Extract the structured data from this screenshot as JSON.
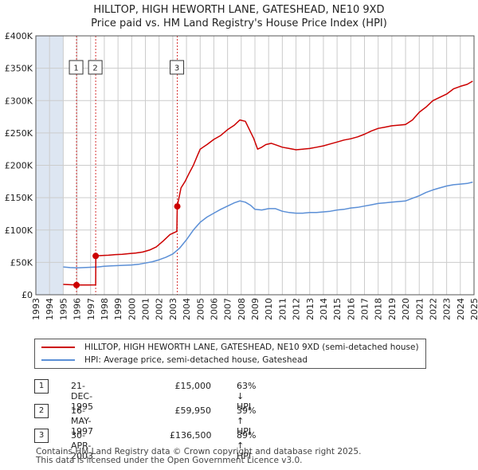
{
  "title_line1": "HILLTOP, HIGH HEWORTH LANE, GATESHEAD, NE10 9XD",
  "title_line2": "Price paid vs. HM Land Registry's House Price Index (HPI)",
  "colors": {
    "property": "#cc0000",
    "hpi": "#5b8fd6",
    "shade": "#dde6f2",
    "grid": "#cccccc"
  },
  "chart_data": {
    "type": "line",
    "xlim": [
      1993,
      2025
    ],
    "ylim": [
      0,
      400000
    ],
    "xticks": [
      1993,
      1994,
      1995,
      1996,
      1997,
      1998,
      1999,
      2000,
      2001,
      2002,
      2003,
      2004,
      2005,
      2006,
      2007,
      2008,
      2009,
      2010,
      2011,
      2012,
      2013,
      2014,
      2015,
      2016,
      2017,
      2018,
      2019,
      2020,
      2021,
      2022,
      2023,
      2024,
      2025
    ],
    "yticks": [
      {
        "value": 0,
        "label": "£0"
      },
      {
        "value": 50000,
        "label": "£50K"
      },
      {
        "value": 100000,
        "label": "£100K"
      },
      {
        "value": 150000,
        "label": "£150K"
      },
      {
        "value": 200000,
        "label": "£200K"
      },
      {
        "value": 250000,
        "label": "£250K"
      },
      {
        "value": 300000,
        "label": "£300K"
      },
      {
        "value": 350000,
        "label": "£350K"
      },
      {
        "value": 400000,
        "label": "£400K"
      }
    ],
    "shaded_ranges": [
      [
        1993,
        1995.0
      ],
      [
        2025.0,
        2025.4
      ]
    ],
    "series": [
      {
        "name": "HILLTOP, HIGH HEWORTH LANE, GATESHEAD, NE10 9XD (semi-detached house)",
        "color": "#cc0000",
        "points": [
          [
            1995.0,
            16000
          ],
          [
            1995.5,
            15500
          ],
          [
            1995.97,
            15000
          ],
          [
            1996.3,
            15000
          ],
          [
            1996.8,
            15100
          ],
          [
            1997.37,
            15200
          ],
          [
            1997.38,
            59950
          ],
          [
            1997.8,
            60500
          ],
          [
            1998.3,
            61000
          ],
          [
            1998.8,
            62000
          ],
          [
            1999.3,
            62500
          ],
          [
            1999.8,
            63500
          ],
          [
            2000.3,
            64500
          ],
          [
            2000.8,
            66000
          ],
          [
            2001.3,
            69000
          ],
          [
            2001.8,
            74000
          ],
          [
            2002.3,
            83000
          ],
          [
            2002.8,
            93000
          ],
          [
            2003.3,
            98000
          ],
          [
            2003.33,
            136500
          ],
          [
            2003.6,
            165000
          ],
          [
            2003.9,
            175000
          ],
          [
            2004.2,
            188000
          ],
          [
            2004.5,
            200000
          ],
          [
            2004.8,
            215000
          ],
          [
            2005.0,
            225000
          ],
          [
            2005.5,
            232000
          ],
          [
            2006.0,
            240000
          ],
          [
            2006.5,
            246000
          ],
          [
            2007.0,
            255000
          ],
          [
            2007.5,
            262000
          ],
          [
            2007.9,
            270000
          ],
          [
            2008.3,
            268000
          ],
          [
            2008.6,
            255000
          ],
          [
            2008.9,
            242000
          ],
          [
            2009.2,
            225000
          ],
          [
            2009.5,
            228000
          ],
          [
            2009.8,
            232000
          ],
          [
            2010.2,
            234000
          ],
          [
            2010.6,
            231000
          ],
          [
            2011.0,
            228000
          ],
          [
            2011.5,
            226000
          ],
          [
            2012.0,
            224000
          ],
          [
            2012.5,
            225000
          ],
          [
            2013.0,
            226000
          ],
          [
            2013.5,
            228000
          ],
          [
            2014.0,
            230000
          ],
          [
            2014.5,
            233000
          ],
          [
            2015.0,
            236000
          ],
          [
            2015.5,
            239000
          ],
          [
            2016.0,
            241000
          ],
          [
            2016.5,
            244000
          ],
          [
            2017.0,
            248000
          ],
          [
            2017.5,
            253000
          ],
          [
            2018.0,
            257000
          ],
          [
            2018.5,
            259000
          ],
          [
            2019.0,
            261000
          ],
          [
            2019.5,
            262000
          ],
          [
            2020.0,
            263000
          ],
          [
            2020.5,
            270000
          ],
          [
            2021.0,
            282000
          ],
          [
            2021.5,
            290000
          ],
          [
            2022.0,
            300000
          ],
          [
            2022.5,
            305000
          ],
          [
            2023.0,
            310000
          ],
          [
            2023.5,
            318000
          ],
          [
            2024.0,
            322000
          ],
          [
            2024.5,
            325000
          ],
          [
            2024.9,
            330000
          ]
        ]
      },
      {
        "name": "HPI: Average price, semi-detached house, Gateshead",
        "color": "#5b8fd6",
        "points": [
          [
            1995.0,
            43000
          ],
          [
            1995.5,
            42000
          ],
          [
            1996.0,
            41500
          ],
          [
            1996.5,
            42000
          ],
          [
            1997.0,
            42500
          ],
          [
            1997.5,
            43000
          ],
          [
            1998.0,
            44000
          ],
          [
            1998.5,
            44500
          ],
          [
            1999.0,
            45000
          ],
          [
            1999.5,
            45500
          ],
          [
            2000.0,
            46000
          ],
          [
            2000.5,
            47000
          ],
          [
            2001.0,
            49000
          ],
          [
            2001.5,
            51000
          ],
          [
            2002.0,
            54000
          ],
          [
            2002.5,
            58000
          ],
          [
            2003.0,
            63000
          ],
          [
            2003.5,
            72000
          ],
          [
            2004.0,
            85000
          ],
          [
            2004.5,
            100000
          ],
          [
            2005.0,
            112000
          ],
          [
            2005.5,
            120000
          ],
          [
            2006.0,
            126000
          ],
          [
            2006.5,
            132000
          ],
          [
            2007.0,
            137000
          ],
          [
            2007.5,
            142000
          ],
          [
            2007.9,
            145000
          ],
          [
            2008.3,
            143000
          ],
          [
            2008.7,
            138000
          ],
          [
            2009.0,
            132000
          ],
          [
            2009.5,
            131000
          ],
          [
            2010.0,
            133000
          ],
          [
            2010.5,
            133000
          ],
          [
            2011.0,
            129000
          ],
          [
            2011.5,
            127000
          ],
          [
            2012.0,
            126000
          ],
          [
            2012.5,
            126000
          ],
          [
            2013.0,
            127000
          ],
          [
            2013.5,
            127000
          ],
          [
            2014.0,
            128000
          ],
          [
            2014.5,
            129000
          ],
          [
            2015.0,
            131000
          ],
          [
            2015.5,
            132000
          ],
          [
            2016.0,
            134000
          ],
          [
            2016.5,
            135000
          ],
          [
            2017.0,
            137000
          ],
          [
            2017.5,
            139000
          ],
          [
            2018.0,
            141000
          ],
          [
            2018.5,
            142000
          ],
          [
            2019.0,
            143000
          ],
          [
            2019.5,
            144000
          ],
          [
            2020.0,
            145000
          ],
          [
            2020.5,
            149000
          ],
          [
            2021.0,
            153000
          ],
          [
            2021.5,
            158000
          ],
          [
            2022.0,
            162000
          ],
          [
            2022.5,
            165000
          ],
          [
            2023.0,
            168000
          ],
          [
            2023.5,
            170000
          ],
          [
            2024.0,
            171000
          ],
          [
            2024.5,
            172000
          ],
          [
            2024.9,
            174000
          ]
        ]
      }
    ],
    "sales": [
      {
        "id": "1",
        "x": 1995.97,
        "y": 15000
      },
      {
        "id": "2",
        "x": 1997.37,
        "y": 59950
      },
      {
        "id": "3",
        "x": 2003.33,
        "y": 136500
      }
    ],
    "legend_position": "below"
  },
  "legend": {
    "property_label": "HILLTOP, HIGH HEWORTH LANE, GATESHEAD, NE10 9XD (semi-detached house)",
    "hpi_label": "HPI: Average price, semi-detached house, Gateshead"
  },
  "transactions": [
    {
      "num": "1",
      "date": "21-DEC-1995",
      "price": "£15,000",
      "hpi": "63% ↓ HPI"
    },
    {
      "num": "2",
      "date": "16-MAY-1997",
      "price": "£59,950",
      "hpi": "39% ↑ HPI"
    },
    {
      "num": "3",
      "date": "30-APR-2003",
      "price": "£136,500",
      "hpi": "89% ↑ HPI"
    }
  ],
  "footer_line1": "Contains HM Land Registry data © Crown copyright and database right 2025.",
  "footer_line2": "This data is licensed under the Open Government Licence v3.0."
}
